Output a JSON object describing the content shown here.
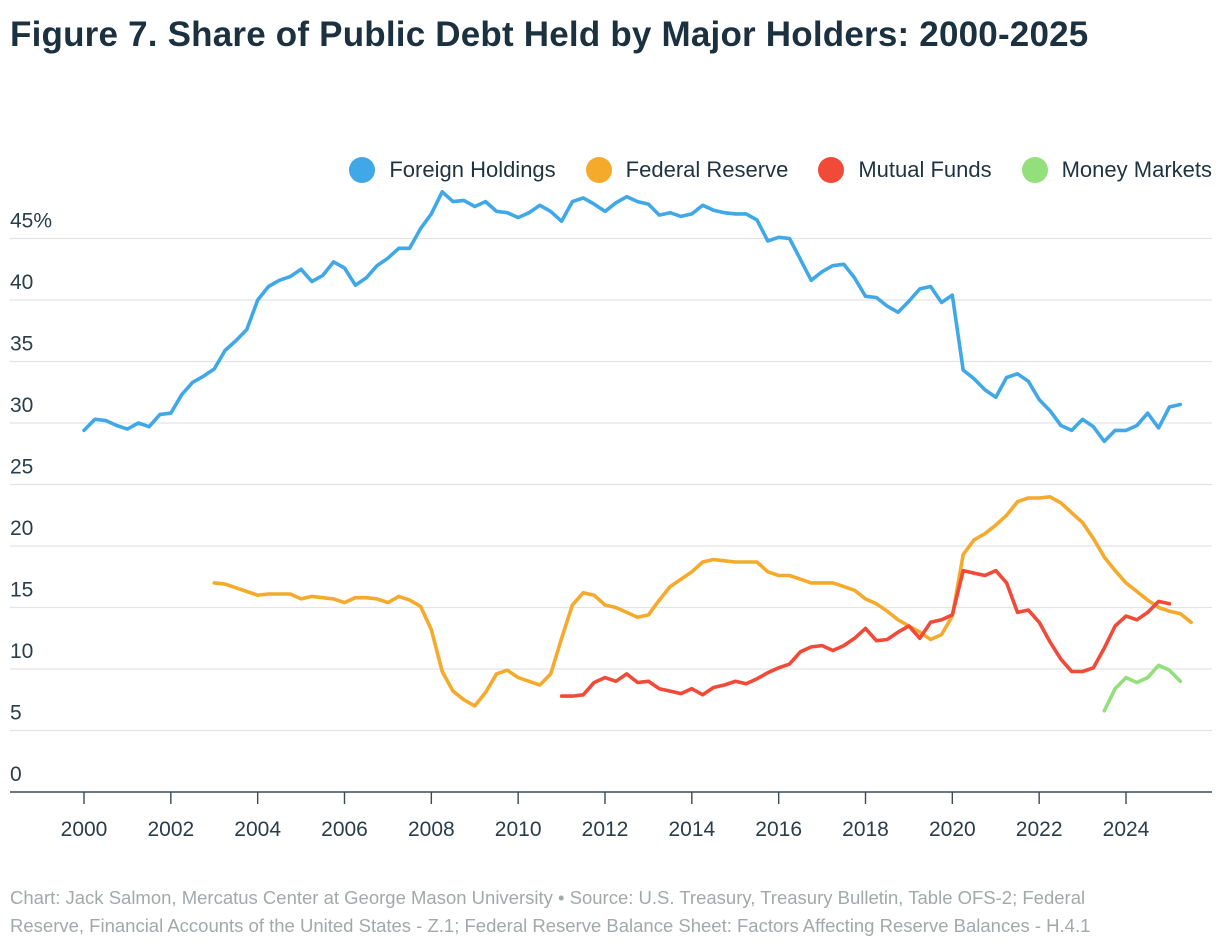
{
  "title": "Figure 7. Share of Public Debt Held by Major Holders: 2000-2025",
  "footer": {
    "line1": "Chart: Jack Salmon, Mercatus Center at George Mason University • Source: U.S. Treasury, Treasury Bulletin, Table OFS-2; Federal",
    "line2": "Reserve, Financial Accounts of the United States - Z.1; Federal Reserve Balance Sheet: Factors Affecting Reserve Balances - H.4.1"
  },
  "legend": [
    {
      "name": "Foreign Holdings",
      "color": "#41a8e8"
    },
    {
      "name": "Federal Reserve",
      "color": "#f6aa2c"
    },
    {
      "name": "Mutual Funds",
      "color": "#f24a38"
    },
    {
      "name": "Money Markets",
      "color": "#93df7c"
    }
  ],
  "chart_data": {
    "type": "line",
    "title": "Figure 7. Share of Public Debt Held by Major Holders: 2000-2025",
    "xlabel": "",
    "ylabel": "",
    "xlim": [
      2000,
      2025.75
    ],
    "ylim": [
      0,
      48
    ],
    "x_ticks": [
      2000,
      2002,
      2004,
      2006,
      2008,
      2010,
      2012,
      2014,
      2016,
      2018,
      2020,
      2022,
      2024
    ],
    "x_tick_labels": [
      "2000",
      "2002",
      "2004",
      "2006",
      "2008",
      "2010",
      "2012",
      "2014",
      "2016",
      "2018",
      "2020",
      "2022",
      "2024"
    ],
    "y_ticks": [
      0,
      5,
      10,
      15,
      20,
      25,
      30,
      35,
      40,
      45
    ],
    "y_tick_labels": [
      "0",
      "5",
      "10",
      "15",
      "20",
      "25",
      "30",
      "35",
      "40",
      "45%"
    ],
    "grid": true,
    "legend_position": "top-right",
    "series": [
      {
        "name": "Foreign Holdings",
        "color": "#41a8e8",
        "points": [
          [
            2000.0,
            29.4
          ],
          [
            2000.25,
            30.3
          ],
          [
            2000.5,
            30.2
          ],
          [
            2000.75,
            29.8
          ],
          [
            2001.0,
            29.5
          ],
          [
            2001.25,
            30.0
          ],
          [
            2001.5,
            29.7
          ],
          [
            2001.75,
            30.7
          ],
          [
            2002.0,
            30.8
          ],
          [
            2002.25,
            32.3
          ],
          [
            2002.5,
            33.3
          ],
          [
            2002.75,
            33.8
          ],
          [
            2003.0,
            34.4
          ],
          [
            2003.25,
            35.9
          ],
          [
            2003.5,
            36.7
          ],
          [
            2003.75,
            37.6
          ],
          [
            2004.0,
            40.0
          ],
          [
            2004.25,
            41.1
          ],
          [
            2004.5,
            41.6
          ],
          [
            2004.75,
            41.9
          ],
          [
            2005.0,
            42.5
          ],
          [
            2005.25,
            41.5
          ],
          [
            2005.5,
            42.0
          ],
          [
            2005.75,
            43.1
          ],
          [
            2006.0,
            42.6
          ],
          [
            2006.25,
            41.2
          ],
          [
            2006.5,
            41.8
          ],
          [
            2006.75,
            42.8
          ],
          [
            2007.0,
            43.4
          ],
          [
            2007.25,
            44.2
          ],
          [
            2007.5,
            44.2
          ],
          [
            2007.75,
            45.8
          ],
          [
            2008.0,
            47.0
          ],
          [
            2008.25,
            48.8
          ],
          [
            2008.5,
            48.0
          ],
          [
            2008.75,
            48.1
          ],
          [
            2009.0,
            47.6
          ],
          [
            2009.25,
            48.0
          ],
          [
            2009.5,
            47.2
          ],
          [
            2009.75,
            47.1
          ],
          [
            2010.0,
            46.7
          ],
          [
            2010.25,
            47.1
          ],
          [
            2010.5,
            47.7
          ],
          [
            2010.75,
            47.2
          ],
          [
            2011.0,
            46.4
          ],
          [
            2011.25,
            48.0
          ],
          [
            2011.5,
            48.3
          ],
          [
            2011.75,
            47.8
          ],
          [
            2012.0,
            47.2
          ],
          [
            2012.25,
            47.9
          ],
          [
            2012.5,
            48.4
          ],
          [
            2012.75,
            48.0
          ],
          [
            2013.0,
            47.8
          ],
          [
            2013.25,
            46.9
          ],
          [
            2013.5,
            47.1
          ],
          [
            2013.75,
            46.8
          ],
          [
            2014.0,
            47.0
          ],
          [
            2014.25,
            47.7
          ],
          [
            2014.5,
            47.3
          ],
          [
            2014.75,
            47.1
          ],
          [
            2015.0,
            47.0
          ],
          [
            2015.25,
            47.0
          ],
          [
            2015.5,
            46.5
          ],
          [
            2015.75,
            44.8
          ],
          [
            2016.0,
            45.1
          ],
          [
            2016.25,
            45.0
          ],
          [
            2016.5,
            43.3
          ],
          [
            2016.75,
            41.6
          ],
          [
            2017.0,
            42.3
          ],
          [
            2017.25,
            42.8
          ],
          [
            2017.5,
            42.9
          ],
          [
            2017.75,
            41.8
          ],
          [
            2018.0,
            40.3
          ],
          [
            2018.25,
            40.2
          ],
          [
            2018.5,
            39.5
          ],
          [
            2018.75,
            39.0
          ],
          [
            2019.0,
            39.9
          ],
          [
            2019.25,
            40.9
          ],
          [
            2019.5,
            41.1
          ],
          [
            2019.75,
            39.8
          ],
          [
            2020.0,
            40.4
          ],
          [
            2020.25,
            34.3
          ],
          [
            2020.5,
            33.6
          ],
          [
            2020.75,
            32.7
          ],
          [
            2021.0,
            32.1
          ],
          [
            2021.25,
            33.7
          ],
          [
            2021.5,
            34.0
          ],
          [
            2021.75,
            33.4
          ],
          [
            2022.0,
            31.9
          ],
          [
            2022.25,
            31.0
          ],
          [
            2022.5,
            29.8
          ],
          [
            2022.75,
            29.4
          ],
          [
            2023.0,
            30.3
          ],
          [
            2023.25,
            29.7
          ],
          [
            2023.5,
            28.5
          ],
          [
            2023.75,
            29.4
          ],
          [
            2024.0,
            29.4
          ],
          [
            2024.25,
            29.8
          ],
          [
            2024.5,
            30.8
          ],
          [
            2024.75,
            29.6
          ],
          [
            2025.0,
            31.3
          ],
          [
            2025.25,
            31.5
          ]
        ]
      },
      {
        "name": "Federal Reserve",
        "color": "#f6aa2c",
        "points": [
          [
            2003.0,
            17.0
          ],
          [
            2003.25,
            16.9
          ],
          [
            2003.5,
            16.6
          ],
          [
            2003.75,
            16.3
          ],
          [
            2004.0,
            16.0
          ],
          [
            2004.25,
            16.1
          ],
          [
            2004.5,
            16.1
          ],
          [
            2004.75,
            16.1
          ],
          [
            2005.0,
            15.7
          ],
          [
            2005.25,
            15.9
          ],
          [
            2005.5,
            15.8
          ],
          [
            2005.75,
            15.7
          ],
          [
            2006.0,
            15.4
          ],
          [
            2006.25,
            15.8
          ],
          [
            2006.5,
            15.8
          ],
          [
            2006.75,
            15.7
          ],
          [
            2007.0,
            15.4
          ],
          [
            2007.25,
            15.9
          ],
          [
            2007.5,
            15.6
          ],
          [
            2007.75,
            15.1
          ],
          [
            2008.0,
            13.2
          ],
          [
            2008.25,
            9.8
          ],
          [
            2008.5,
            8.2
          ],
          [
            2008.75,
            7.5
          ],
          [
            2009.0,
            7.0
          ],
          [
            2009.25,
            8.1
          ],
          [
            2009.5,
            9.6
          ],
          [
            2009.75,
            9.9
          ],
          [
            2010.0,
            9.3
          ],
          [
            2010.25,
            9.0
          ],
          [
            2010.5,
            8.7
          ],
          [
            2010.75,
            9.6
          ],
          [
            2011.0,
            12.5
          ],
          [
            2011.25,
            15.2
          ],
          [
            2011.5,
            16.2
          ],
          [
            2011.75,
            16.0
          ],
          [
            2012.0,
            15.2
          ],
          [
            2012.25,
            15.0
          ],
          [
            2012.5,
            14.6
          ],
          [
            2012.75,
            14.2
          ],
          [
            2013.0,
            14.4
          ],
          [
            2013.25,
            15.6
          ],
          [
            2013.5,
            16.7
          ],
          [
            2013.75,
            17.3
          ],
          [
            2014.0,
            17.9
          ],
          [
            2014.25,
            18.7
          ],
          [
            2014.5,
            18.9
          ],
          [
            2014.75,
            18.8
          ],
          [
            2015.0,
            18.7
          ],
          [
            2015.25,
            18.7
          ],
          [
            2015.5,
            18.7
          ],
          [
            2015.75,
            17.9
          ],
          [
            2016.0,
            17.6
          ],
          [
            2016.25,
            17.6
          ],
          [
            2016.5,
            17.3
          ],
          [
            2016.75,
            17.0
          ],
          [
            2017.0,
            17.0
          ],
          [
            2017.25,
            17.0
          ],
          [
            2017.5,
            16.7
          ],
          [
            2017.75,
            16.4
          ],
          [
            2018.0,
            15.7
          ],
          [
            2018.25,
            15.3
          ],
          [
            2018.5,
            14.7
          ],
          [
            2018.75,
            14.0
          ],
          [
            2019.0,
            13.5
          ],
          [
            2019.25,
            13.0
          ],
          [
            2019.5,
            12.4
          ],
          [
            2019.75,
            12.8
          ],
          [
            2020.0,
            14.3
          ],
          [
            2020.25,
            19.3
          ],
          [
            2020.5,
            20.5
          ],
          [
            2020.75,
            21.0
          ],
          [
            2021.0,
            21.7
          ],
          [
            2021.25,
            22.5
          ],
          [
            2021.5,
            23.6
          ],
          [
            2021.75,
            23.9
          ],
          [
            2022.0,
            23.9
          ],
          [
            2022.25,
            24.0
          ],
          [
            2022.5,
            23.5
          ],
          [
            2022.75,
            22.7
          ],
          [
            2023.0,
            21.9
          ],
          [
            2023.25,
            20.6
          ],
          [
            2023.5,
            19.1
          ],
          [
            2023.75,
            18.0
          ],
          [
            2024.0,
            17.0
          ],
          [
            2024.25,
            16.3
          ],
          [
            2024.5,
            15.6
          ],
          [
            2024.75,
            15.0
          ],
          [
            2025.0,
            14.7
          ],
          [
            2025.25,
            14.5
          ],
          [
            2025.5,
            13.8
          ]
        ]
      },
      {
        "name": "Mutual Funds",
        "color": "#f24a38",
        "points": [
          [
            2011.0,
            7.8
          ],
          [
            2011.25,
            7.8
          ],
          [
            2011.5,
            7.9
          ],
          [
            2011.75,
            8.9
          ],
          [
            2012.0,
            9.3
          ],
          [
            2012.25,
            9.0
          ],
          [
            2012.5,
            9.6
          ],
          [
            2012.75,
            8.9
          ],
          [
            2013.0,
            9.0
          ],
          [
            2013.25,
            8.4
          ],
          [
            2013.5,
            8.2
          ],
          [
            2013.75,
            8.0
          ],
          [
            2014.0,
            8.4
          ],
          [
            2014.25,
            7.9
          ],
          [
            2014.5,
            8.5
          ],
          [
            2014.75,
            8.7
          ],
          [
            2015.0,
            9.0
          ],
          [
            2015.25,
            8.8
          ],
          [
            2015.5,
            9.2
          ],
          [
            2015.75,
            9.7
          ],
          [
            2016.0,
            10.1
          ],
          [
            2016.25,
            10.4
          ],
          [
            2016.5,
            11.4
          ],
          [
            2016.75,
            11.8
          ],
          [
            2017.0,
            11.9
          ],
          [
            2017.25,
            11.5
          ],
          [
            2017.5,
            11.9
          ],
          [
            2017.75,
            12.5
          ],
          [
            2018.0,
            13.3
          ],
          [
            2018.25,
            12.3
          ],
          [
            2018.5,
            12.4
          ],
          [
            2018.75,
            13.0
          ],
          [
            2019.0,
            13.5
          ],
          [
            2019.25,
            12.5
          ],
          [
            2019.5,
            13.8
          ],
          [
            2019.75,
            14.0
          ],
          [
            2020.0,
            14.4
          ],
          [
            2020.25,
            18.0
          ],
          [
            2020.5,
            17.8
          ],
          [
            2020.75,
            17.6
          ],
          [
            2021.0,
            18.0
          ],
          [
            2021.25,
            17.0
          ],
          [
            2021.5,
            14.6
          ],
          [
            2021.75,
            14.8
          ],
          [
            2022.0,
            13.8
          ],
          [
            2022.25,
            12.2
          ],
          [
            2022.5,
            10.8
          ],
          [
            2022.75,
            9.8
          ],
          [
            2023.0,
            9.8
          ],
          [
            2023.25,
            10.1
          ],
          [
            2023.5,
            11.7
          ],
          [
            2023.75,
            13.5
          ],
          [
            2024.0,
            14.3
          ],
          [
            2024.25,
            14.0
          ],
          [
            2024.5,
            14.6
          ],
          [
            2024.75,
            15.5
          ],
          [
            2025.0,
            15.3
          ]
        ]
      },
      {
        "name": "Money Markets",
        "color": "#93df7c",
        "points": [
          [
            2023.5,
            6.6
          ],
          [
            2023.75,
            8.4
          ],
          [
            2024.0,
            9.3
          ],
          [
            2024.25,
            8.9
          ],
          [
            2024.5,
            9.3
          ],
          [
            2024.75,
            10.3
          ],
          [
            2025.0,
            9.9
          ],
          [
            2025.25,
            9.0
          ]
        ]
      }
    ]
  }
}
